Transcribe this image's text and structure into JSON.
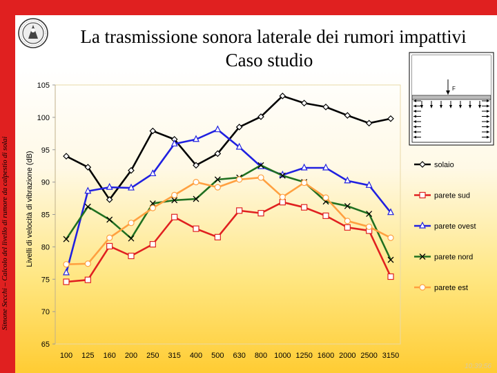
{
  "sidebar": {
    "author_text": "Simone Secchi – Calcolo del livello di rumore da calpestio di solai"
  },
  "title": {
    "line1": "La trasmissione sonora laterale dei rumori impattivi",
    "line2": "Caso studio"
  },
  "inset": {
    "force_label": "F"
  },
  "footer": {
    "time": "10:39:56"
  },
  "colors": {
    "frame": "#e02020",
    "solaio": "#000000",
    "parete_sud": "#e02020",
    "parete_ovest": "#2020e0",
    "parete_nord": "#207020",
    "parete_est": "#ffa040"
  },
  "chart_data": {
    "type": "line",
    "title": "",
    "xlabel": "",
    "ylabel": "Livelli di velocità di vibrazione (dB)",
    "ylim": [
      65,
      105
    ],
    "yticks": [
      "105",
      "100",
      "95",
      "90",
      "85",
      "80",
      "75",
      "70",
      "65"
    ],
    "categories": [
      "100",
      "125",
      "160",
      "200",
      "250",
      "315",
      "400",
      "500",
      "630",
      "800",
      "1000",
      "1250",
      "1600",
      "2000",
      "2500",
      "3150"
    ],
    "grid": false,
    "legend": "right",
    "series": [
      {
        "name": "solaio",
        "marker": "diamond",
        "color": "#000000",
        "values": [
          94.0,
          92.3,
          87.3,
          91.8,
          97.9,
          96.6,
          92.6,
          94.4,
          98.5,
          100.1,
          103.3,
          102.2,
          101.6,
          100.3,
          99.1,
          99.8
        ]
      },
      {
        "name": "parete sud",
        "marker": "square",
        "color": "#e02020",
        "values": [
          74.6,
          74.9,
          80.1,
          78.6,
          80.4,
          84.6,
          82.8,
          81.5,
          85.6,
          85.2,
          86.9,
          86.1,
          84.8,
          83.0,
          82.5,
          75.4
        ]
      },
      {
        "name": "parete ovest",
        "marker": "triangle",
        "color": "#2020e0",
        "values": [
          76.0,
          88.6,
          89.2,
          89.1,
          91.3,
          95.9,
          96.6,
          98.1,
          95.4,
          92.4,
          91.1,
          92.2,
          92.2,
          90.2,
          89.5,
          85.3
        ]
      },
      {
        "name": "parete nord",
        "marker": "x",
        "color": "#207020",
        "values": [
          81.2,
          86.2,
          84.2,
          81.3,
          86.7,
          87.2,
          87.4,
          90.4,
          90.7,
          92.6,
          91.0,
          90.0,
          87.0,
          86.3,
          85.1,
          78.0
        ]
      },
      {
        "name": "parete est",
        "marker": "circle",
        "color": "#ffa040",
        "values": [
          77.3,
          77.4,
          81.4,
          83.7,
          86.0,
          88.0,
          90.0,
          89.2,
          90.4,
          90.7,
          87.7,
          89.9,
          87.6,
          84.0,
          83.1,
          81.4
        ]
      }
    ]
  }
}
